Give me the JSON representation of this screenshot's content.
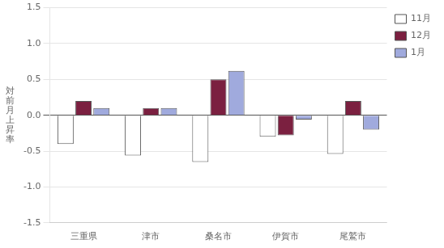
{
  "chart_data": {
    "type": "bar",
    "ylabel": "対\n前\n月\n上\n昇\n率",
    "categories": [
      "三重県",
      "津市",
      "桑名市",
      "伊賀市",
      "尾鷲市"
    ],
    "series": [
      {
        "name": "11月",
        "color": "#ffffff",
        "values": [
          -0.4,
          -0.56,
          -0.65,
          -0.3,
          -0.54
        ]
      },
      {
        "name": "12月",
        "color": "#7b2040",
        "values": [
          0.2,
          0.1,
          0.5,
          -0.28,
          0.2
        ]
      },
      {
        "name": "1月",
        "color": "#a0aadd",
        "values": [
          0.1,
          0.1,
          0.62,
          -0.06,
          -0.2
        ]
      }
    ],
    "ylim": [
      -1.5,
      1.5
    ],
    "yticks": [
      -1.5,
      {
        "value": -1,
        "label": "-1.0"
      },
      -0.5,
      {
        "value": 0,
        "label": "0.0"
      },
      0.5,
      {
        "value": 1,
        "label": "1.0"
      },
      1.5
    ],
    "grid": true,
    "legend": "upper right"
  }
}
